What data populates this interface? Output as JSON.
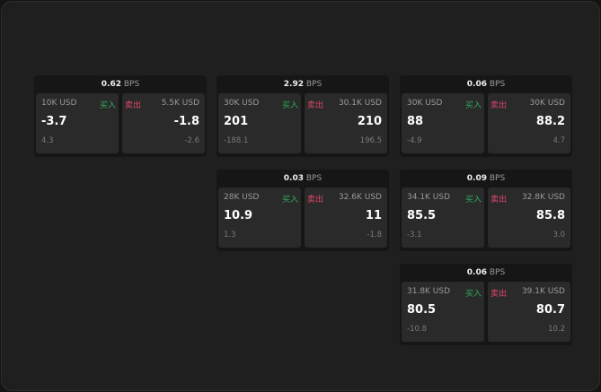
{
  "unit": "BPS",
  "buy_label": "买入",
  "sell_label": "卖出",
  "colors": {
    "buy": "#2fae5b",
    "sell": "#e0466a"
  },
  "widgets": [
    {
      "spread": "0.62",
      "buy": {
        "qty": "10K USD",
        "price": "-3.7",
        "change": "4.3"
      },
      "sell": {
        "qty": "5.5K USD",
        "price": "-1.8",
        "change": "-2.6"
      }
    },
    {
      "spread": "2.92",
      "buy": {
        "qty": "30K USD",
        "price": "201",
        "change": "-188.1"
      },
      "sell": {
        "qty": "30.1K USD",
        "price": "210",
        "change": "196.5"
      }
    },
    {
      "spread": "0.06",
      "buy": {
        "qty": "30K USD",
        "price": "88",
        "change": "-4.9"
      },
      "sell": {
        "qty": "30K USD",
        "price": "88.2",
        "change": "4.7"
      }
    },
    {
      "spread": "0.03",
      "buy": {
        "qty": "28K USD",
        "price": "10.9",
        "change": "1.3"
      },
      "sell": {
        "qty": "32.6K USD",
        "price": "11",
        "change": "-1.8"
      }
    },
    {
      "spread": "0.09",
      "buy": {
        "qty": "34.1K USD",
        "price": "85.5",
        "change": "-3.1"
      },
      "sell": {
        "qty": "32.8K USD",
        "price": "85.8",
        "change": "3.0"
      }
    },
    {
      "spread": "0.06",
      "buy": {
        "qty": "31.8K USD",
        "price": "80.5",
        "change": "-10.8"
      },
      "sell": {
        "qty": "39.1K USD",
        "price": "80.7",
        "change": "10.2"
      }
    }
  ]
}
